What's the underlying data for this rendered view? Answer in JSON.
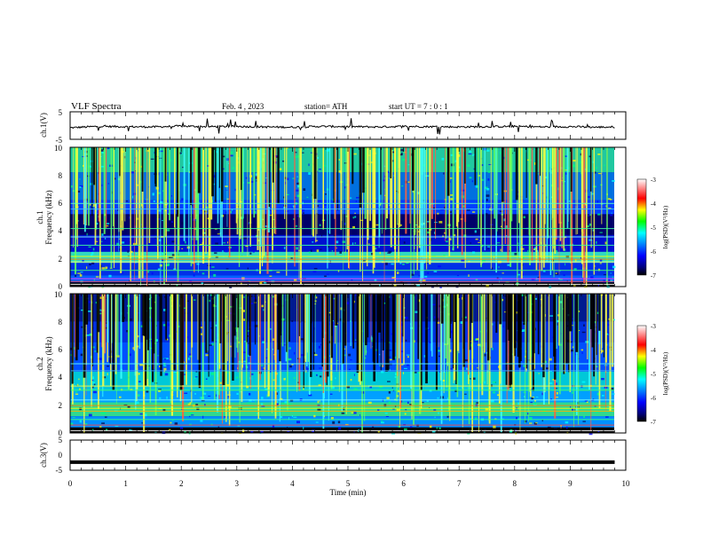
{
  "header": {
    "title": "VLF  Spectra",
    "date": "Feb. 4  , 2023",
    "station": "station= ATH",
    "start": "start  UT  =    7  : 0   : 1"
  },
  "colors": {
    "ink": "#000000",
    "background": "#ffffff",
    "signal_trace": "#000000",
    "colormap": [
      "#000000",
      "#00007a",
      "#0000ff",
      "#0080ff",
      "#00ffff",
      "#00ff00",
      "#ffff00",
      "#ff0000",
      "#ff8080",
      "#ffffff"
    ]
  },
  "chart_data": [
    {
      "type": "line",
      "panel": "ch1-signal",
      "ylabel": "ch.1(V)",
      "yticks": [
        "5",
        "-5"
      ],
      "ylim": [
        -5,
        5
      ],
      "xlim": [
        0,
        10
      ],
      "series": [
        {
          "x": [
            0,
            0.5,
            1,
            1.5,
            2,
            2.5,
            3,
            3.5,
            4,
            4.5,
            5,
            5.5,
            6,
            6.5,
            7,
            7.5,
            8,
            8.5,
            9,
            9.5,
            9.8
          ],
          "values": [
            -0.8,
            -0.3,
            -0.4,
            -0.5,
            -0.2,
            -0.4,
            -0.3,
            -0.5,
            -0.6,
            -0.3,
            -0.4,
            -0.5,
            -0.3,
            -0.4,
            -0.5,
            -0.4,
            -0.3,
            -0.5,
            -0.4,
            -0.6,
            -0.5
          ]
        }
      ]
    },
    {
      "type": "heatmap",
      "panel": "ch1-spectrogram",
      "ylabel_line1": "ch.1",
      "ylabel_line2": "Frequency (kHz)",
      "yticks": [
        "0",
        "2",
        "4",
        "6",
        "8",
        "10"
      ],
      "ylim": [
        0,
        10
      ],
      "xlim": [
        0,
        9.8
      ],
      "colorbar": {
        "label": "log(PSD)(V²/Hz)",
        "ticks": [
          "-3",
          "-4",
          "-5",
          "-6",
          "-7"
        ],
        "range": [
          -7,
          -3
        ]
      }
    },
    {
      "type": "heatmap",
      "panel": "ch2-spectrogram",
      "ylabel_line1": "ch.2",
      "ylabel_line2": "Frequency (kHz)",
      "yticks": [
        "0",
        "2",
        "4",
        "6",
        "8",
        "10"
      ],
      "ylim": [
        0,
        10
      ],
      "xlim": [
        0,
        9.8
      ],
      "colorbar": {
        "label": "log(PSD)(V²/Hz)",
        "ticks": [
          "-3",
          "-4",
          "-5",
          "-6",
          "-7"
        ],
        "range": [
          -7,
          -3
        ]
      }
    },
    {
      "type": "line",
      "panel": "ch3-signal",
      "ylabel": "ch.3(V)",
      "yticks": [
        "5",
        "0",
        "-5"
      ],
      "ylim": [
        -5,
        5
      ],
      "xlim": [
        0,
        10
      ],
      "series": [
        {
          "x": [
            0,
            9.8
          ],
          "values": [
            -2.3,
            -2.3
          ]
        }
      ]
    }
  ],
  "xaxis": {
    "label": "Time  (min)",
    "ticks": [
      "0",
      "1",
      "2",
      "3",
      "4",
      "5",
      "6",
      "7",
      "8",
      "9",
      "10"
    ]
  }
}
